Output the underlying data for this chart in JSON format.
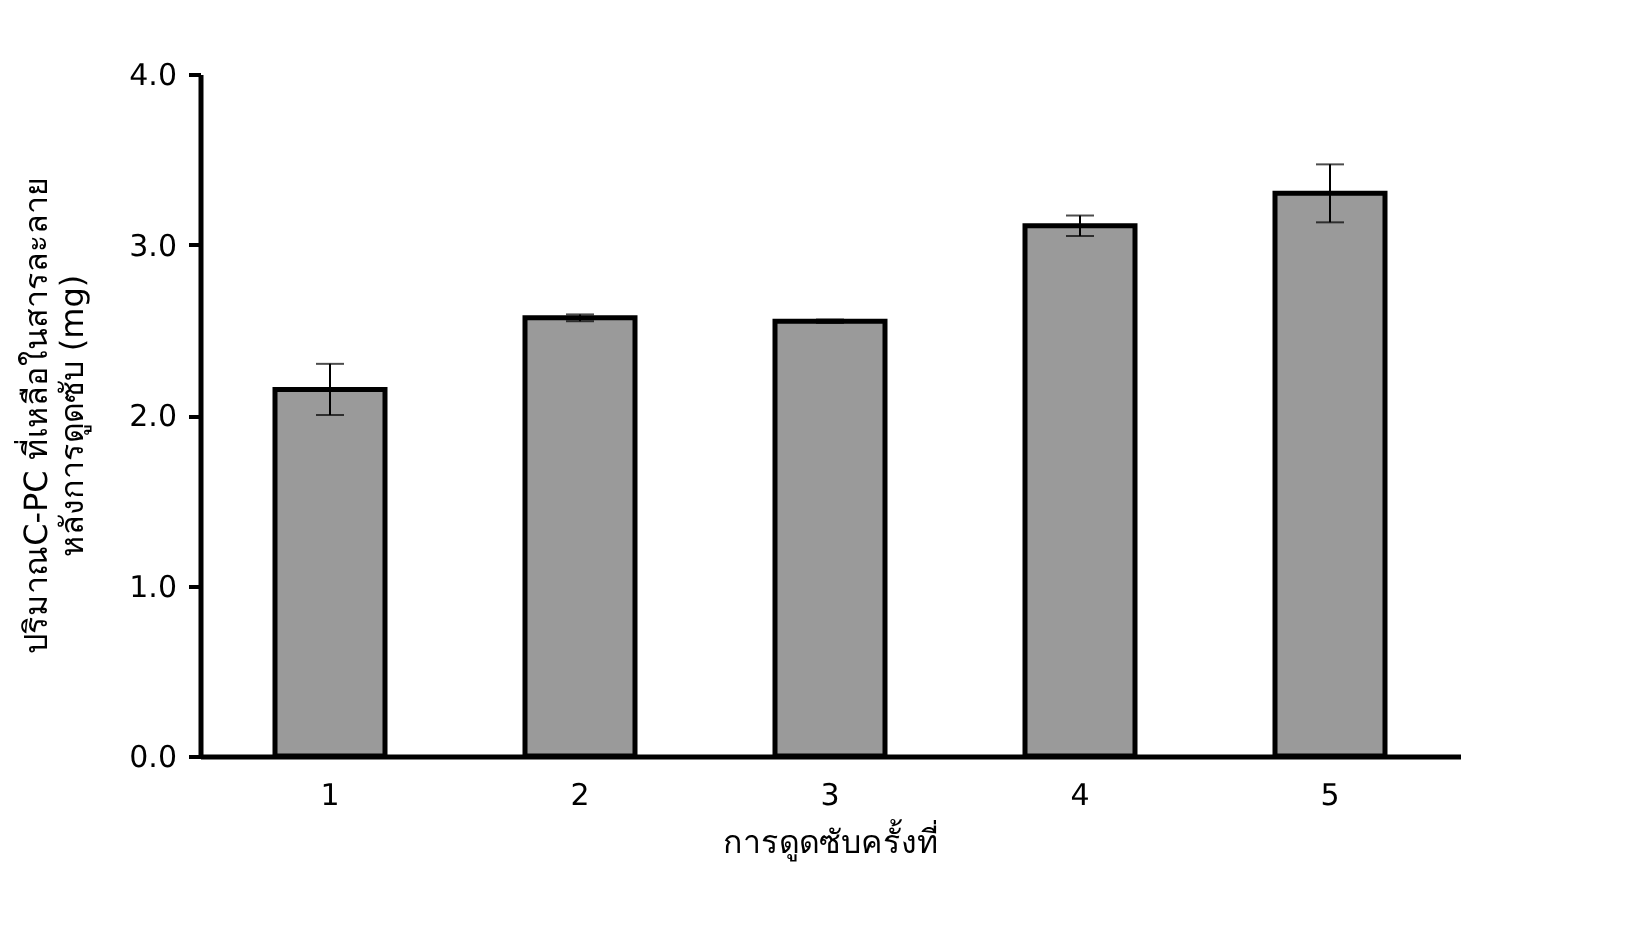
{
  "chart_data": {
    "type": "bar",
    "xlabel": "การดูดซับครั้งที่",
    "ylabel": "ปริมาณC-PC ที่เหลือในสารละลาย\nหลังการดูดซับ (mg)",
    "categories": [
      "1",
      "2",
      "3",
      "4",
      "5"
    ],
    "values": [
      2.15,
      2.57,
      2.55,
      3.11,
      3.3
    ],
    "errors": [
      0.15,
      0.02,
      0.01,
      0.06,
      0.17
    ],
    "color": "#9a9a9a",
    "ylim": [
      0,
      4
    ],
    "yticks": [
      {
        "value": 0,
        "label": "0.0"
      },
      {
        "value": 1,
        "label": "1.0"
      },
      {
        "value": 2,
        "label": "2.0"
      },
      {
        "value": 3,
        "label": "3.0"
      },
      {
        "value": 4,
        "label": "4.0"
      }
    ],
    "grid": false
  }
}
